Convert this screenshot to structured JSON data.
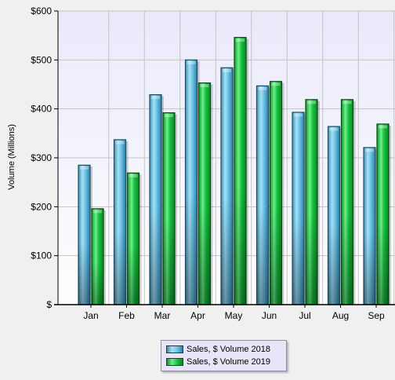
{
  "chart_data": {
    "type": "bar",
    "categories": [
      "Jan",
      "Feb",
      "Mar",
      "Apr",
      "May",
      "Jun",
      "Jul",
      "Aug",
      "Sep"
    ],
    "series": [
      {
        "name": "Sales, $ Volume 2018",
        "values": [
          285,
          337,
          429,
          500,
          484,
          447,
          393,
          364,
          321
        ],
        "color": "#6fc4e8"
      },
      {
        "name": "Sales, $ Volume 2019",
        "values": [
          196,
          269,
          392,
          453,
          546,
          456,
          419,
          419,
          369
        ],
        "color": "#18c040"
      }
    ],
    "ylabel": "Volume (Millions)",
    "ylim": [
      0,
      600
    ],
    "yticks": [
      0,
      100,
      200,
      300,
      400,
      500,
      600
    ],
    "ytick_labels": [
      "$",
      "$100",
      "$200",
      "$300",
      "$400",
      "$500",
      "$600"
    ],
    "grid": true,
    "legend_position": "bottom-center"
  }
}
